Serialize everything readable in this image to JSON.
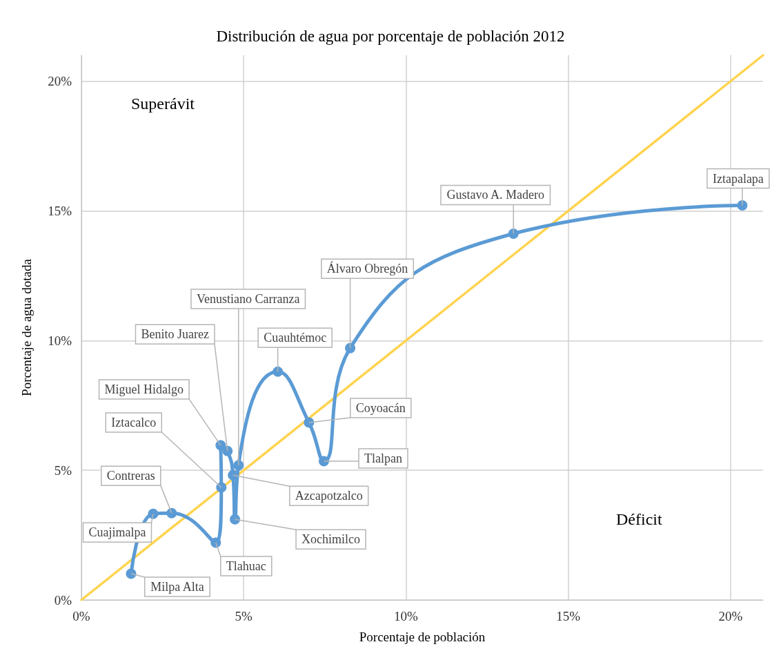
{
  "chart_data": {
    "type": "line",
    "title": "Distribución de agua por porcentaje de población 2012",
    "xlabel": "Porcentaje de población",
    "ylabel": "Porcentaje de agua dotada",
    "xlim": [
      0,
      21
    ],
    "ylim": [
      0,
      21
    ],
    "xticks": [
      {
        "value": 0,
        "label": "0%"
      },
      {
        "value": 5,
        "label": "5%"
      },
      {
        "value": 10,
        "label": "10%"
      },
      {
        "value": 15,
        "label": "15%"
      },
      {
        "value": 20,
        "label": "20%"
      }
    ],
    "yticks": [
      {
        "value": 0,
        "label": "0%"
      },
      {
        "value": 5,
        "label": "5%"
      },
      {
        "value": 10,
        "label": "10%"
      },
      {
        "value": 15,
        "label": "15%"
      },
      {
        "value": 20,
        "label": "20%"
      }
    ],
    "grid": true,
    "marker": "circle",
    "line_style": "solid",
    "series": [
      {
        "color": "#5b9bd5",
        "x": [
          1.53,
          2.21,
          2.78,
          4.14,
          4.31,
          4.29,
          4.5,
          4.67,
          4.73,
          4.84,
          6.05,
          7.01,
          7.47,
          8.28,
          13.31,
          20.36
        ],
        "values": [
          1.01,
          3.32,
          3.35,
          2.21,
          4.34,
          5.96,
          5.74,
          4.81,
          3.11,
          5.19,
          8.8,
          6.84,
          5.35,
          9.71,
          14.12,
          15.21
        ]
      },
      {
        "type": "line",
        "color": "#ffd34e",
        "marker": "none",
        "x": [
          0,
          21
        ],
        "values": [
          0,
          21
        ]
      }
    ],
    "annotations": [
      {
        "text": "Milpa Alta",
        "x": 1.53,
        "y": 1.01
      },
      {
        "text": "Cuajimalpa",
        "x": 2.21,
        "y": 3.32
      },
      {
        "text": "Contreras",
        "x": 2.78,
        "y": 3.35
      },
      {
        "text": "Tlahuac",
        "x": 4.14,
        "y": 2.21
      },
      {
        "text": "Iztacalco",
        "x": 4.31,
        "y": 4.34
      },
      {
        "text": "Miguel Hidalgo",
        "x": 4.29,
        "y": 5.96
      },
      {
        "text": "Benito Juarez",
        "x": 4.5,
        "y": 5.74
      },
      {
        "text": "Azcapotzalco",
        "x": 4.67,
        "y": 4.81
      },
      {
        "text": "Xochimilco",
        "x": 4.73,
        "y": 3.11
      },
      {
        "text": "Venustiano Carranza",
        "x": 4.84,
        "y": 5.19
      },
      {
        "text": "Cuauhtémoc",
        "x": 6.05,
        "y": 8.8
      },
      {
        "text": "Coyoacán",
        "x": 7.01,
        "y": 6.84
      },
      {
        "text": "Tlalpan",
        "x": 7.47,
        "y": 5.35
      },
      {
        "text": "Álvaro Obregón",
        "x": 8.28,
        "y": 9.71
      },
      {
        "text": "Gustavo A. Madero",
        "x": 13.31,
        "y": 14.12
      },
      {
        "text": "Iztapalapa",
        "x": 20.36,
        "y": 15.21
      },
      "Superávit",
      "Déficit"
    ]
  }
}
